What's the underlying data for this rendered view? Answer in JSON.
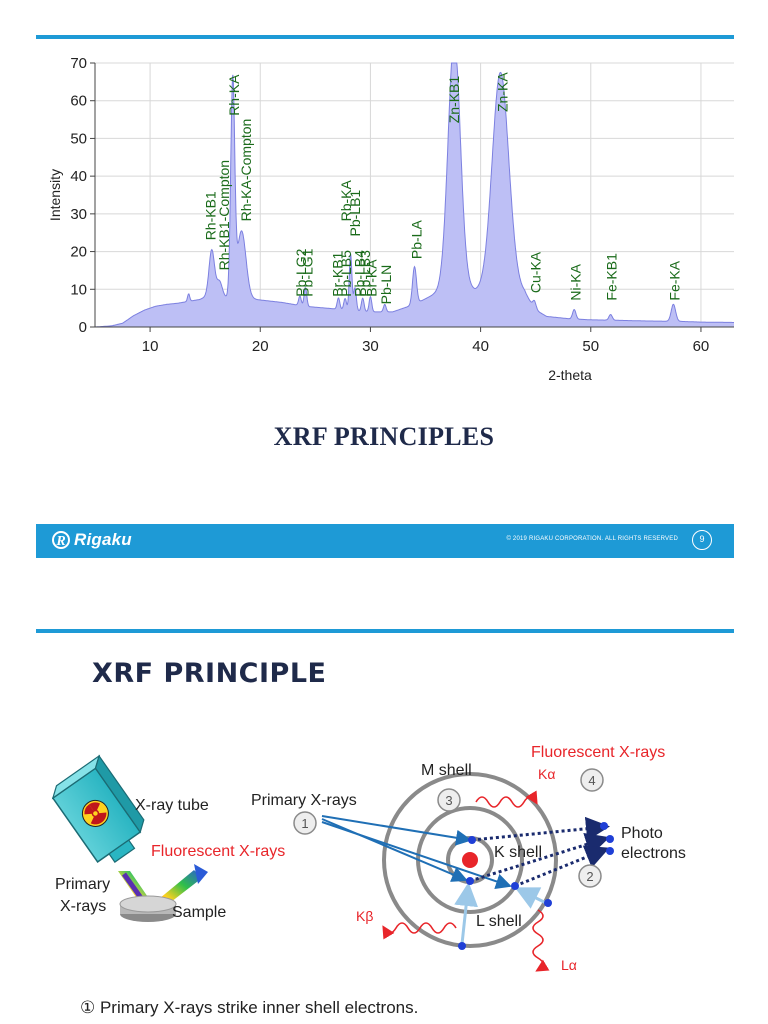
{
  "slide1": {
    "title": "XRF PRINCIPLES",
    "footer": {
      "logo": "Rigaku",
      "logo_mark": "R",
      "copyright": "© 2019 RIGAKU CORPORATION. ALL RIGHTS RESERVED",
      "page": "9"
    }
  },
  "slide2": {
    "title": "XRF PRINCIPLE",
    "caption": "① Primary X-rays strike inner shell electrons.",
    "left_labels": {
      "tube": "X-ray tube",
      "fluorescent": "Fluorescent X-rays",
      "primary_line1": "Primary",
      "primary_line2": "X-rays",
      "sample": "Sample"
    },
    "right_labels": {
      "primary": "Primary X-rays",
      "m_shell": "M shell",
      "k_shell": "K shell",
      "l_shell": "L shell",
      "fluorescent": "Fluorescent X-rays",
      "ka": "Kα",
      "kb": "Kβ",
      "la": "Lα",
      "photo_line1": "Photo",
      "photo_line2": "electrons",
      "steps": [
        "1",
        "2",
        "3",
        "4"
      ]
    },
    "colors": {
      "red": "#e8252a",
      "blue": "#1f6fb5",
      "navy": "#1a2b6e",
      "gray": "#8a8a8a",
      "accent": "#1e9ad6"
    },
    "icons": [
      "radiation-icon",
      "x-ray-tube-icon",
      "sample-disk-icon",
      "atom-shell-icon"
    ]
  },
  "chart_data": {
    "type": "area",
    "xlabel": "2-theta",
    "ylabel": "Intensity",
    "xlim": [
      5,
      63
    ],
    "ylim": [
      0,
      70
    ],
    "xticks": [
      10,
      20,
      30,
      40,
      50,
      60
    ],
    "yticks": [
      0,
      10,
      20,
      30,
      40,
      50,
      60,
      70
    ],
    "grid": true,
    "fill_color": "#bdbff5",
    "line_color": "#7c80e0",
    "baseline": [
      [
        5,
        0
      ],
      [
        6.5,
        0.3
      ],
      [
        7.5,
        1
      ],
      [
        8.5,
        3
      ],
      [
        9.5,
        4.5
      ],
      [
        10.5,
        5.5
      ],
      [
        11.5,
        6
      ],
      [
        12.5,
        6.3
      ],
      [
        13.5,
        6.8
      ],
      [
        14.5,
        7.3
      ],
      [
        15.5,
        8.5
      ],
      [
        16.5,
        8
      ],
      [
        17.5,
        7.5
      ],
      [
        19,
        7.5
      ],
      [
        20.5,
        7
      ],
      [
        22,
        6.5
      ],
      [
        24,
        5.5
      ],
      [
        26,
        5
      ],
      [
        28,
        4.5
      ],
      [
        30,
        4
      ],
      [
        32,
        4
      ],
      [
        34,
        6
      ],
      [
        36,
        9
      ],
      [
        38,
        12
      ],
      [
        39.5,
        9.5
      ],
      [
        40.5,
        9
      ],
      [
        43,
        10
      ],
      [
        44,
        9
      ],
      [
        45,
        4.5
      ],
      [
        46,
        2.8
      ],
      [
        48,
        2.2
      ],
      [
        50,
        1.9
      ],
      [
        52,
        1.8
      ],
      [
        55,
        1.6
      ],
      [
        58,
        1.5
      ],
      [
        60,
        1.3
      ],
      [
        63,
        1.2
      ]
    ],
    "peaks": [
      {
        "x": 13.5,
        "h": 2,
        "w": 0.1
      },
      {
        "x": 15.6,
        "h": 12,
        "w": 0.25
      },
      {
        "x": 16.3,
        "h": 4,
        "w": 0.25
      },
      {
        "x": 17.5,
        "h": 57,
        "w": 0.18
      },
      {
        "x": 18.3,
        "h": 18,
        "w": 0.4
      },
      {
        "x": 23.6,
        "h": 2.5,
        "w": 0.12
      },
      {
        "x": 24.1,
        "h": 5,
        "w": 0.12
      },
      {
        "x": 27.1,
        "h": 3,
        "w": 0.12
      },
      {
        "x": 27.7,
        "h": 3,
        "w": 0.12
      },
      {
        "x": 28.2,
        "h": 15,
        "w": 0.12
      },
      {
        "x": 28.6,
        "h": 6,
        "w": 0.12
      },
      {
        "x": 29.3,
        "h": 3.5,
        "w": 0.12
      },
      {
        "x": 30.0,
        "h": 4,
        "w": 0.12
      },
      {
        "x": 31.3,
        "h": 2,
        "w": 0.12
      },
      {
        "x": 34.0,
        "h": 10,
        "w": 0.18
      },
      {
        "x": 37.6,
        "h": 65,
        "w": 0.55
      },
      {
        "x": 41.8,
        "h": 58,
        "w": 0.75
      },
      {
        "x": 44.9,
        "h": 2,
        "w": 0.15
      },
      {
        "x": 48.5,
        "h": 2.5,
        "w": 0.15
      },
      {
        "x": 51.8,
        "h": 1.5,
        "w": 0.15
      },
      {
        "x": 57.5,
        "h": 4.5,
        "w": 0.2
      }
    ],
    "peak_labels": [
      {
        "text": "Rh-KB1",
        "x": 15.5,
        "y": 23
      },
      {
        "text": "Rh-KB1-Compton",
        "x": 16.7,
        "y": 15
      },
      {
        "text": "Rh-KA",
        "x": 17.6,
        "y": 56
      },
      {
        "text": "Rh-KA-Compton",
        "x": 18.7,
        "y": 28
      },
      {
        "text": "Pb-LG2",
        "x": 23.7,
        "y": 8
      },
      {
        "text": "Pb-LG1",
        "x": 24.3,
        "y": 8
      },
      {
        "text": "Br-KB1",
        "x": 27.0,
        "y": 8
      },
      {
        "text": "Rb-KA",
        "x": 27.8,
        "y": 28
      },
      {
        "text": "Pb-LB5",
        "x": 27.8,
        "y": 8
      },
      {
        "text": "Pb-LB1",
        "x": 28.6,
        "y": 24
      },
      {
        "text": "Pb-LB4",
        "x": 29.0,
        "y": 8
      },
      {
        "text": "Pb-LB3",
        "x": 29.5,
        "y": 8
      },
      {
        "text": "Br-KA",
        "x": 30.1,
        "y": 8
      },
      {
        "text": "Pb-LN",
        "x": 31.4,
        "y": 6
      },
      {
        "text": "Pb-LA",
        "x": 34.2,
        "y": 18
      },
      {
        "text": "Zn-KB1",
        "x": 37.6,
        "y": 54
      },
      {
        "text": "Zn-KA",
        "x": 42.0,
        "y": 57
      },
      {
        "text": "Cu-KA",
        "x": 45.0,
        "y": 9
      },
      {
        "text": "Ni-KA",
        "x": 48.6,
        "y": 7
      },
      {
        "text": "Fe-KB1",
        "x": 51.9,
        "y": 7
      },
      {
        "text": "Fe-KA",
        "x": 57.6,
        "y": 7
      }
    ]
  }
}
